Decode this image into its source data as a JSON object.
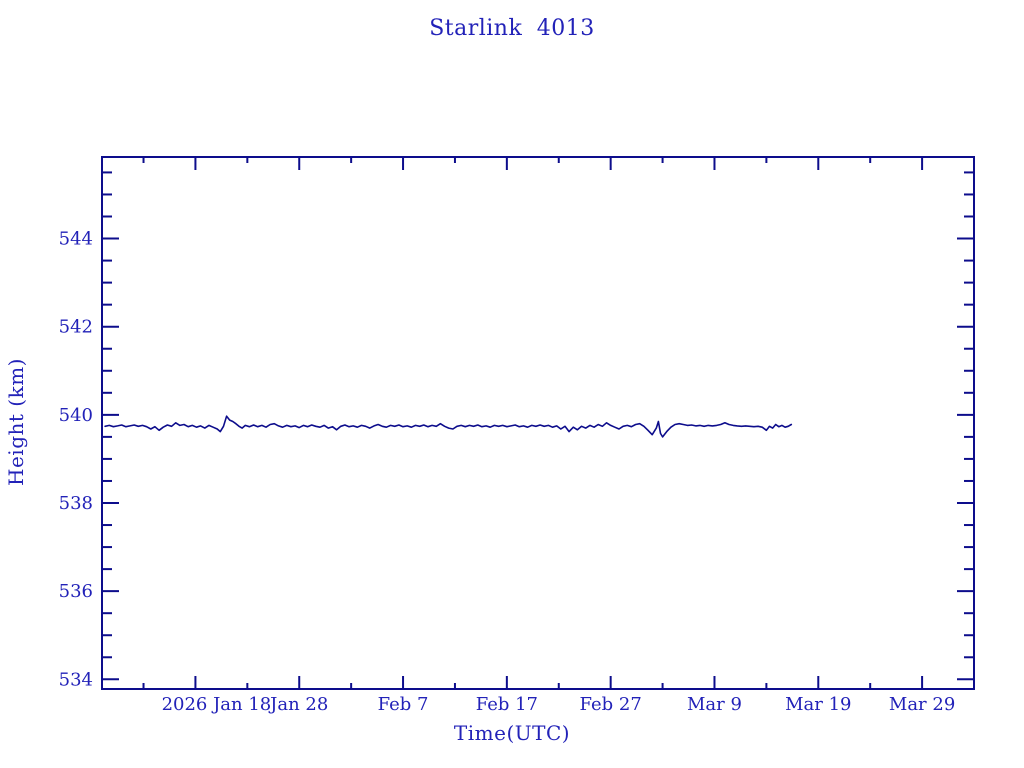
{
  "chart_data": {
    "type": "line",
    "title": "Starlink 4013",
    "xlabel": "Time(UTC)",
    "ylabel": "Height (km)",
    "legend": "none",
    "grid": false,
    "colors": {
      "text": "#2222b8",
      "axis": "#0d0d8c",
      "curve": "#0d0d8c",
      "background": "#ffffff"
    },
    "x_axis": {
      "unit": "days since 2026-01-01 (UTC)",
      "range_days": [
        9.0,
        93.0
      ],
      "major_tick_days": [
        18,
        28,
        38,
        48,
        58,
        68,
        78,
        88
      ],
      "major_tick_labels": [
        "2026 Jan 18",
        "Jan 28",
        "Feb  7",
        "Feb 17",
        "Feb 27",
        "Mar  9",
        "Mar 19",
        "Mar 29"
      ],
      "minor_tick_days": [
        13,
        23,
        33,
        43,
        53,
        63,
        73,
        83
      ]
    },
    "y_axis": {
      "range_km": [
        533.78,
        545.85
      ],
      "major_ticks_km": [
        534,
        536,
        538,
        540,
        542,
        544
      ],
      "major_tick_labels": [
        "534",
        "536",
        "538",
        "540",
        "542",
        "544"
      ],
      "minor_tick_step_km": 0.5
    },
    "series": [
      {
        "name": "orbital-height",
        "points_day_km": [
          [
            9.3,
            539.74
          ],
          [
            9.7,
            539.76
          ],
          [
            10.1,
            539.73
          ],
          [
            10.5,
            539.75
          ],
          [
            10.9,
            539.77
          ],
          [
            11.3,
            539.73
          ],
          [
            11.7,
            539.75
          ],
          [
            12.1,
            539.77
          ],
          [
            12.5,
            539.74
          ],
          [
            12.9,
            539.76
          ],
          [
            13.3,
            539.73
          ],
          [
            13.7,
            539.68
          ],
          [
            14.1,
            539.73
          ],
          [
            14.5,
            539.65
          ],
          [
            14.9,
            539.72
          ],
          [
            15.3,
            539.77
          ],
          [
            15.7,
            539.74
          ],
          [
            16.1,
            539.82
          ],
          [
            16.5,
            539.76
          ],
          [
            16.9,
            539.78
          ],
          [
            17.3,
            539.73
          ],
          [
            17.7,
            539.76
          ],
          [
            18.1,
            539.72
          ],
          [
            18.5,
            539.75
          ],
          [
            18.9,
            539.7
          ],
          [
            19.3,
            539.76
          ],
          [
            19.7,
            539.72
          ],
          [
            20.1,
            539.68
          ],
          [
            20.4,
            539.62
          ],
          [
            20.7,
            539.74
          ],
          [
            21.0,
            539.97
          ],
          [
            21.3,
            539.88
          ],
          [
            21.6,
            539.85
          ],
          [
            21.9,
            539.8
          ],
          [
            22.2,
            539.74
          ],
          [
            22.5,
            539.7
          ],
          [
            22.8,
            539.76
          ],
          [
            23.2,
            539.73
          ],
          [
            23.6,
            539.77
          ],
          [
            24.0,
            539.73
          ],
          [
            24.4,
            539.76
          ],
          [
            24.8,
            539.72
          ],
          [
            25.2,
            539.78
          ],
          [
            25.6,
            539.8
          ],
          [
            26.0,
            539.75
          ],
          [
            26.4,
            539.72
          ],
          [
            26.8,
            539.76
          ],
          [
            27.2,
            539.73
          ],
          [
            27.6,
            539.75
          ],
          [
            28.0,
            539.71
          ],
          [
            28.4,
            539.76
          ],
          [
            28.8,
            539.73
          ],
          [
            29.2,
            539.77
          ],
          [
            29.6,
            539.74
          ],
          [
            30.0,
            539.72
          ],
          [
            30.4,
            539.76
          ],
          [
            30.8,
            539.7
          ],
          [
            31.2,
            539.73
          ],
          [
            31.6,
            539.66
          ],
          [
            32.0,
            539.74
          ],
          [
            32.4,
            539.77
          ],
          [
            32.8,
            539.73
          ],
          [
            33.2,
            539.75
          ],
          [
            33.6,
            539.72
          ],
          [
            34.0,
            539.76
          ],
          [
            34.4,
            539.74
          ],
          [
            34.8,
            539.7
          ],
          [
            35.2,
            539.75
          ],
          [
            35.6,
            539.78
          ],
          [
            36.0,
            539.74
          ],
          [
            36.4,
            539.72
          ],
          [
            36.8,
            539.76
          ],
          [
            37.2,
            539.74
          ],
          [
            37.6,
            539.77
          ],
          [
            38.0,
            539.73
          ],
          [
            38.4,
            539.75
          ],
          [
            38.8,
            539.72
          ],
          [
            39.2,
            539.76
          ],
          [
            39.6,
            539.74
          ],
          [
            40.0,
            539.77
          ],
          [
            40.4,
            539.73
          ],
          [
            40.8,
            539.76
          ],
          [
            41.2,
            539.74
          ],
          [
            41.6,
            539.8
          ],
          [
            42.0,
            539.74
          ],
          [
            42.4,
            539.7
          ],
          [
            42.8,
            539.68
          ],
          [
            43.2,
            539.74
          ],
          [
            43.6,
            539.76
          ],
          [
            44.0,
            539.73
          ],
          [
            44.4,
            539.76
          ],
          [
            44.8,
            539.74
          ],
          [
            45.2,
            539.77
          ],
          [
            45.6,
            539.73
          ],
          [
            46.0,
            539.75
          ],
          [
            46.4,
            539.72
          ],
          [
            46.8,
            539.76
          ],
          [
            47.2,
            539.74
          ],
          [
            47.6,
            539.76
          ],
          [
            48.0,
            539.73
          ],
          [
            48.4,
            539.75
          ],
          [
            48.8,
            539.77
          ],
          [
            49.2,
            539.73
          ],
          [
            49.6,
            539.75
          ],
          [
            50.0,
            539.72
          ],
          [
            50.4,
            539.76
          ],
          [
            50.8,
            539.74
          ],
          [
            51.2,
            539.77
          ],
          [
            51.6,
            539.74
          ],
          [
            52.0,
            539.76
          ],
          [
            52.4,
            539.72
          ],
          [
            52.8,
            539.75
          ],
          [
            53.2,
            539.68
          ],
          [
            53.6,
            539.74
          ],
          [
            54.0,
            539.62
          ],
          [
            54.4,
            539.72
          ],
          [
            54.8,
            539.66
          ],
          [
            55.2,
            539.74
          ],
          [
            55.6,
            539.7
          ],
          [
            56.0,
            539.76
          ],
          [
            56.4,
            539.72
          ],
          [
            56.8,
            539.78
          ],
          [
            57.2,
            539.74
          ],
          [
            57.6,
            539.82
          ],
          [
            58.0,
            539.76
          ],
          [
            58.4,
            539.72
          ],
          [
            58.8,
            539.68
          ],
          [
            59.2,
            539.74
          ],
          [
            59.6,
            539.76
          ],
          [
            60.0,
            539.73
          ],
          [
            60.4,
            539.78
          ],
          [
            60.8,
            539.8
          ],
          [
            61.2,
            539.74
          ],
          [
            61.6,
            539.65
          ],
          [
            62.0,
            539.55
          ],
          [
            62.4,
            539.7
          ],
          [
            62.6,
            539.85
          ],
          [
            62.8,
            539.58
          ],
          [
            63.0,
            539.5
          ],
          [
            63.4,
            539.62
          ],
          [
            63.8,
            539.72
          ],
          [
            64.2,
            539.78
          ],
          [
            64.6,
            539.8
          ],
          [
            65.0,
            539.78
          ],
          [
            65.4,
            539.76
          ],
          [
            65.8,
            539.77
          ],
          [
            66.2,
            539.75
          ],
          [
            66.6,
            539.76
          ],
          [
            67.0,
            539.74
          ],
          [
            67.4,
            539.76
          ],
          [
            67.8,
            539.75
          ],
          [
            68.2,
            539.76
          ],
          [
            68.6,
            539.78
          ],
          [
            69.0,
            539.82
          ],
          [
            69.4,
            539.78
          ],
          [
            69.8,
            539.76
          ],
          [
            70.2,
            539.75
          ],
          [
            70.6,
            539.74
          ],
          [
            71.0,
            539.75
          ],
          [
            71.4,
            539.74
          ],
          [
            71.8,
            539.73
          ],
          [
            72.2,
            539.74
          ],
          [
            72.6,
            539.72
          ],
          [
            73.0,
            539.65
          ],
          [
            73.3,
            539.74
          ],
          [
            73.6,
            539.7
          ],
          [
            73.9,
            539.78
          ],
          [
            74.2,
            539.73
          ],
          [
            74.5,
            539.76
          ],
          [
            74.8,
            539.72
          ],
          [
            75.1,
            539.74
          ],
          [
            75.4,
            539.78
          ]
        ]
      }
    ]
  }
}
